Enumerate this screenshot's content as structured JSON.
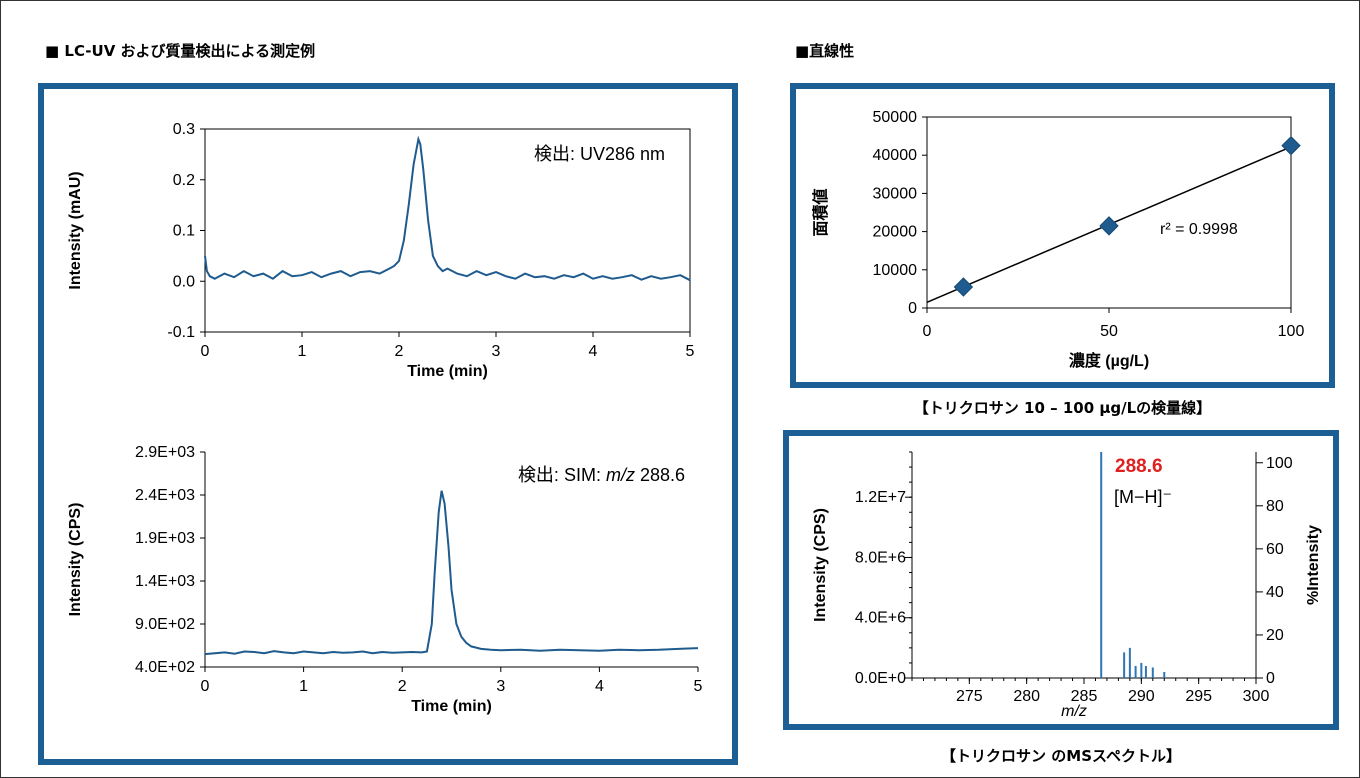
{
  "sections": {
    "left_title": "■ LC-UV および質量検出による測定例",
    "right_title": "■直線性"
  },
  "captions": {
    "calibration": "【トリクロサン 10 – 100 µg/Lの検量線】",
    "spectrum": "【トリクロサン のMSスペクトル】"
  },
  "chart_data": [
    {
      "id": "uv",
      "type": "line",
      "title": "",
      "annotation": "検出: UV286 nm",
      "xlabel": "Time (min)",
      "ylabel": "Intensity (mAU)",
      "xlim": [
        0,
        5
      ],
      "ylim": [
        -0.1,
        0.3
      ],
      "x_ticks": [
        "0",
        "1",
        "2",
        "3",
        "4",
        "5"
      ],
      "y_ticks": [
        "-0.1",
        "0.0",
        "0.1",
        "0.2",
        "0.3"
      ],
      "color": "#1f5b8e",
      "series": [
        {
          "x": [
            0,
            0.02,
            0.05,
            0.1,
            0.2,
            0.3,
            0.4,
            0.5,
            0.6,
            0.7,
            0.8,
            0.9,
            1.0,
            1.1,
            1.2,
            1.3,
            1.4,
            1.5,
            1.6,
            1.7,
            1.8,
            1.9,
            1.95,
            2.0,
            2.05,
            2.1,
            2.15,
            2.2,
            2.22,
            2.25,
            2.3,
            2.35,
            2.4,
            2.45,
            2.5,
            2.6,
            2.7,
            2.8,
            2.9,
            3.0,
            3.1,
            3.2,
            3.3,
            3.4,
            3.5,
            3.6,
            3.7,
            3.8,
            3.9,
            4.0,
            4.1,
            4.2,
            4.3,
            4.4,
            4.5,
            4.6,
            4.7,
            4.8,
            4.9,
            5.0
          ],
          "y": [
            0.05,
            0.02,
            0.01,
            0.005,
            0.015,
            0.008,
            0.02,
            0.01,
            0.015,
            0.005,
            0.02,
            0.01,
            0.012,
            0.018,
            0.008,
            0.015,
            0.02,
            0.01,
            0.018,
            0.02,
            0.015,
            0.025,
            0.03,
            0.04,
            0.08,
            0.15,
            0.23,
            0.28,
            0.27,
            0.22,
            0.12,
            0.05,
            0.03,
            0.02,
            0.025,
            0.015,
            0.01,
            0.02,
            0.012,
            0.018,
            0.01,
            0.005,
            0.015,
            0.008,
            0.01,
            0.005,
            0.012,
            0.008,
            0.015,
            0.005,
            0.01,
            0.005,
            0.008,
            0.012,
            0.003,
            0.01,
            0.005,
            0.008,
            0.012,
            0.002
          ]
        }
      ]
    },
    {
      "id": "sim",
      "type": "line",
      "title": "",
      "annotation_prefix": "検出: SIM: ",
      "annotation_italic": "m/z",
      "annotation_suffix": " 288.6",
      "xlabel": "Time (min)",
      "ylabel": "Intensity (CPS)",
      "xlim": [
        0,
        5
      ],
      "ylim": [
        400,
        2900
      ],
      "x_ticks": [
        "0",
        "1",
        "2",
        "3",
        "4",
        "5"
      ],
      "y_ticks": [
        "4.0E+02",
        "9.0E+02",
        "1.4E+03",
        "1.9E+03",
        "2.4E+03",
        "2.9E+03"
      ],
      "color": "#1f5b8e",
      "series": [
        {
          "x": [
            0,
            0.1,
            0.2,
            0.3,
            0.4,
            0.5,
            0.6,
            0.7,
            0.8,
            0.9,
            1.0,
            1.1,
            1.2,
            1.3,
            1.4,
            1.5,
            1.6,
            1.7,
            1.8,
            1.9,
            2.0,
            2.1,
            2.2,
            2.25,
            2.3,
            2.33,
            2.37,
            2.4,
            2.43,
            2.47,
            2.5,
            2.55,
            2.6,
            2.65,
            2.7,
            2.8,
            2.9,
            3.0,
            3.2,
            3.4,
            3.6,
            3.8,
            4.0,
            4.2,
            4.4,
            4.6,
            4.8,
            5.0
          ],
          "y": [
            550,
            560,
            570,
            555,
            580,
            575,
            560,
            585,
            570,
            560,
            580,
            570,
            560,
            575,
            565,
            570,
            580,
            560,
            575,
            565,
            570,
            575,
            570,
            580,
            900,
            1500,
            2200,
            2450,
            2300,
            1800,
            1300,
            900,
            750,
            680,
            640,
            610,
            600,
            595,
            600,
            590,
            600,
            595,
            590,
            600,
            595,
            600,
            610,
            620
          ]
        }
      ]
    },
    {
      "id": "calibration",
      "type": "scatter",
      "title": "",
      "annotation": "r² = 0.9998",
      "xlabel": "濃度 (µg/L)",
      "ylabel": "面積値",
      "xlim": [
        0,
        100
      ],
      "ylim": [
        0,
        50000
      ],
      "x_ticks": [
        "0",
        "50",
        "100"
      ],
      "y_ticks": [
        "0",
        "10000",
        "20000",
        "30000",
        "40000",
        "50000"
      ],
      "color": "#1f5b8e",
      "points": {
        "x": [
          10,
          50,
          100
        ],
        "y": [
          5500,
          21500,
          42500
        ]
      },
      "fit_line": {
        "x": [
          0,
          100
        ],
        "y": [
          1500,
          42200
        ]
      }
    },
    {
      "id": "spectrum",
      "type": "bar",
      "title": "",
      "peak_label": "288.6",
      "peak_label_color": "#e02020",
      "ion_label": "[M−H]⁻",
      "xlabel": "m/z",
      "ylabel": "Intensity (CPS)",
      "y2label": "%Intensity",
      "xlim": [
        270,
        300
      ],
      "ylim": [
        0,
        15000000
      ],
      "y2lim": [
        0,
        105
      ],
      "x_ticks": [
        "275",
        "280",
        "285",
        "290",
        "295",
        "300"
      ],
      "y_ticks": [
        "0.0E+0",
        "4.0E+6",
        "8.0E+6",
        "1.2E+7"
      ],
      "y2_ticks": [
        "0",
        "20",
        "40",
        "60",
        "80",
        "100"
      ],
      "color": "#2e75b6",
      "sticks": {
        "x": [
          286.5,
          288.5,
          289.0,
          289.5,
          290.0,
          290.4,
          291.0,
          292.0
        ],
        "y": [
          15000000,
          1700000,
          2000000,
          800000,
          1000000,
          800000,
          700000,
          400000
        ]
      }
    }
  ]
}
